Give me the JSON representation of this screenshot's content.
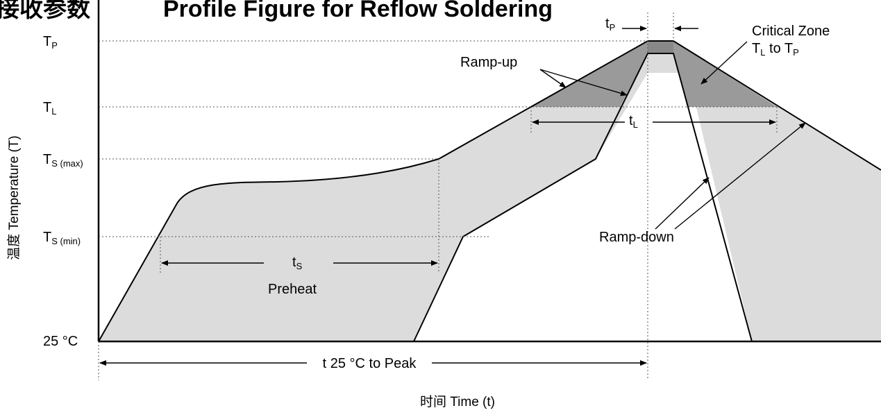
{
  "title": {
    "left": "接收参数",
    "right": "Profile Figure for Reflow Soldering"
  },
  "axes": {
    "y_label": "温度 Temperature (T)",
    "x_label": "时间 Time (t)"
  },
  "levels": {
    "tp": {
      "main": "T",
      "sub": "P"
    },
    "tl": {
      "main": "T",
      "sub": "L"
    },
    "tsmax": {
      "main": "T",
      "sub": "S (max)"
    },
    "tsmin": {
      "main": "T",
      "sub": "S (min)"
    },
    "t25": "25 °C"
  },
  "annotations": {
    "tp_interval": {
      "main": "t",
      "sub": "P"
    },
    "critical_zone_line1": "Critical Zone",
    "critical_zone_line2": {
      "a": "T",
      "a_sub": "L",
      "mid": " to T",
      "b_sub": "P"
    },
    "ramp_up": "Ramp-up",
    "ramp_down": "Ramp-down",
    "tl_interval": {
      "main": "t",
      "sub": "L"
    },
    "ts_interval": {
      "main": "t",
      "sub": "S"
    },
    "preheat": "Preheat",
    "t25_to_peak": "t 25 °C to Peak"
  },
  "colors": {
    "process_window": "#dcdcdc",
    "critical_zone": "#9a9a9a",
    "peak_bar": "#888888",
    "curve": "#000000"
  }
}
